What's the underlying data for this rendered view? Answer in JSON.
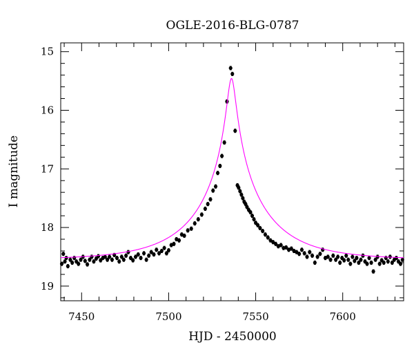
{
  "chart_data": {
    "type": "scatter",
    "title": "OGLE-2016-BLG-0787",
    "xlabel": "HJD - 2450000",
    "ylabel": "I magnitude",
    "xlim": [
      7438,
      7635
    ],
    "ylim": [
      19.25,
      14.85
    ],
    "y_inverted": true,
    "grid": false,
    "x_ticks": [
      {
        "value": 7450,
        "label": "7450"
      },
      {
        "value": 7500,
        "label": "7500"
      },
      {
        "value": 7550,
        "label": "7550"
      },
      {
        "value": 7600,
        "label": "7600"
      }
    ],
    "y_ticks": [
      {
        "value": 15,
        "label": "15"
      },
      {
        "value": 16,
        "label": "16"
      },
      {
        "value": 17,
        "label": "17"
      },
      {
        "value": 18,
        "label": "18"
      },
      {
        "value": 19,
        "label": "19"
      }
    ],
    "colors": {
      "data": "#000000",
      "model": "#ff00ff"
    },
    "series": [
      {
        "type": "scatter",
        "error_bars": true,
        "points": [
          [
            7438.6,
            18.62,
            0.03
          ],
          [
            7439.5,
            18.45,
            0.03
          ],
          [
            7440.4,
            18.58,
            0.03
          ],
          [
            7441.2,
            18.52,
            0.03
          ],
          [
            7442.1,
            18.66,
            0.03
          ],
          [
            7443.5,
            18.55,
            0.03
          ],
          [
            7444.6,
            18.6,
            0.03
          ],
          [
            7445.8,
            18.52,
            0.03
          ],
          [
            7447,
            18.58,
            0.03
          ],
          [
            7448.2,
            18.62,
            0.03
          ],
          [
            7449.5,
            18.55,
            0.03
          ],
          [
            7450.8,
            18.5,
            0.03
          ],
          [
            7452,
            18.57,
            0.03
          ],
          [
            7453.3,
            18.63,
            0.03
          ],
          [
            7454.6,
            18.55,
            0.03
          ],
          [
            7455.8,
            18.5,
            0.03
          ],
          [
            7457,
            18.58,
            0.03
          ],
          [
            7458.4,
            18.53,
            0.03
          ],
          [
            7459.6,
            18.49,
            0.03
          ],
          [
            7460.9,
            18.56,
            0.03
          ],
          [
            7462.2,
            18.52,
            0.03
          ],
          [
            7463.5,
            18.5,
            0.03
          ],
          [
            7464.8,
            18.55,
            0.03
          ],
          [
            7466,
            18.5,
            0.03
          ],
          [
            7467.5,
            18.55,
            0.03
          ],
          [
            7468.8,
            18.47,
            0.03
          ],
          [
            7470.3,
            18.52,
            0.03
          ],
          [
            7471.6,
            18.58,
            0.03
          ],
          [
            7473,
            18.5,
            0.03
          ],
          [
            7474.2,
            18.55,
            0.03
          ],
          [
            7475.5,
            18.48,
            0.03
          ],
          [
            7476.8,
            18.42,
            0.03
          ],
          [
            7478.2,
            18.52,
            0.03
          ],
          [
            7479.5,
            18.56,
            0.03
          ],
          [
            7481,
            18.5,
            0.03
          ],
          [
            7482.5,
            18.46,
            0.03
          ],
          [
            7484,
            18.52,
            0.03
          ],
          [
            7485.8,
            18.44,
            0.03
          ],
          [
            7487.2,
            18.55,
            0.03
          ],
          [
            7488.6,
            18.48,
            0.03
          ],
          [
            7490,
            18.42,
            0.03
          ],
          [
            7491.5,
            18.46,
            0.03
          ],
          [
            7493,
            18.38,
            0.03
          ],
          [
            7494.5,
            18.44,
            0.03
          ],
          [
            7496,
            18.4,
            0.03
          ],
          [
            7497.5,
            18.35,
            0.03
          ],
          [
            7498.8,
            18.44,
            0.03
          ],
          [
            7500,
            18.39,
            0.03
          ],
          [
            7501.5,
            18.3,
            0.03
          ],
          [
            7503,
            18.28,
            0.03
          ],
          [
            7504.5,
            18.2,
            0.03
          ],
          [
            7506,
            18.22,
            0.03
          ],
          [
            7507.5,
            18.12,
            0.03
          ],
          [
            7509,
            18.14,
            0.03
          ],
          [
            7511,
            18.05,
            0.03
          ],
          [
            7513,
            18.02,
            0.03
          ],
          [
            7515,
            17.93,
            0.03
          ],
          [
            7517,
            17.86,
            0.03
          ],
          [
            7519,
            17.78,
            0.03
          ],
          [
            7521,
            17.68,
            0.03
          ],
          [
            7522.5,
            17.6,
            0.03
          ],
          [
            7524,
            17.52,
            0.03
          ],
          [
            7525.5,
            17.37,
            0.03
          ],
          [
            7527,
            17.3,
            0.03
          ],
          [
            7528.2,
            17.07,
            0.03
          ],
          [
            7529.5,
            16.95,
            0.03
          ],
          [
            7530.6,
            16.78,
            0.03
          ],
          [
            7532,
            16.55,
            0.03
          ],
          [
            7533.5,
            15.85,
            0.03
          ],
          [
            7535.6,
            15.28,
            0.03
          ],
          [
            7536.6,
            15.38,
            0.03
          ],
          [
            7538.2,
            16.35,
            0.03
          ],
          [
            7539.5,
            17.28,
            0.03
          ],
          [
            7540.2,
            17.32,
            0.03
          ],
          [
            7541,
            17.38,
            0.03
          ],
          [
            7541.8,
            17.44,
            0.03
          ],
          [
            7542.6,
            17.5,
            0.03
          ],
          [
            7543.4,
            17.56,
            0.03
          ],
          [
            7544.2,
            17.6,
            0.03
          ],
          [
            7545,
            17.65,
            0.03
          ],
          [
            7546,
            17.7,
            0.03
          ],
          [
            7547,
            17.74,
            0.03
          ],
          [
            7548,
            17.8,
            0.03
          ],
          [
            7549,
            17.86,
            0.03
          ],
          [
            7550,
            17.92,
            0.03
          ],
          [
            7551.2,
            17.96,
            0.03
          ],
          [
            7552.5,
            18.01,
            0.03
          ],
          [
            7554,
            18.06,
            0.03
          ],
          [
            7555.5,
            18.12,
            0.03
          ],
          [
            7557,
            18.17,
            0.03
          ],
          [
            7558.5,
            18.22,
            0.03
          ],
          [
            7560,
            18.25,
            0.03
          ],
          [
            7561.5,
            18.28,
            0.03
          ],
          [
            7563,
            18.32,
            0.03
          ],
          [
            7564.5,
            18.3,
            0.03
          ],
          [
            7566,
            18.35,
            0.03
          ],
          [
            7567.5,
            18.34,
            0.03
          ],
          [
            7569,
            18.38,
            0.03
          ],
          [
            7570.5,
            18.36,
            0.03
          ],
          [
            7572,
            18.4,
            0.03
          ],
          [
            7573.5,
            18.42,
            0.03
          ],
          [
            7575,
            18.45,
            0.03
          ],
          [
            7576.5,
            18.38,
            0.03
          ],
          [
            7578,
            18.44,
            0.03
          ],
          [
            7579.5,
            18.5,
            0.03
          ],
          [
            7581,
            18.42,
            0.03
          ],
          [
            7582.5,
            18.48,
            0.03
          ],
          [
            7584,
            18.6,
            0.03
          ],
          [
            7585.5,
            18.5,
            0.03
          ],
          [
            7587,
            18.45,
            0.03
          ],
          [
            7588.5,
            18.38,
            0.03
          ],
          [
            7590,
            18.52,
            0.03
          ],
          [
            7591.5,
            18.5,
            0.03
          ],
          [
            7593,
            18.55,
            0.03
          ],
          [
            7594.5,
            18.48,
            0.03
          ],
          [
            7596,
            18.55,
            0.03
          ],
          [
            7597.2,
            18.5,
            0.03
          ],
          [
            7598.4,
            18.6,
            0.03
          ],
          [
            7599.6,
            18.52,
            0.03
          ],
          [
            7600.8,
            18.56,
            0.03
          ],
          [
            7602,
            18.48,
            0.03
          ],
          [
            7603.2,
            18.55,
            0.03
          ],
          [
            7604.4,
            18.62,
            0.03
          ],
          [
            7605.6,
            18.5,
            0.03
          ],
          [
            7606.8,
            18.57,
            0.03
          ],
          [
            7608,
            18.52,
            0.03
          ],
          [
            7609.2,
            18.6,
            0.03
          ],
          [
            7610.4,
            18.55,
            0.03
          ],
          [
            7611.6,
            18.48,
            0.03
          ],
          [
            7612.8,
            18.58,
            0.03
          ],
          [
            7614,
            18.62,
            0.03
          ],
          [
            7615.2,
            18.52,
            0.03
          ],
          [
            7616.4,
            18.6,
            0.03
          ],
          [
            7617.6,
            18.75,
            0.03
          ],
          [
            7618.8,
            18.55,
            0.03
          ],
          [
            7620,
            18.5,
            0.03
          ],
          [
            7621.2,
            18.62,
            0.03
          ],
          [
            7622.4,
            18.56,
            0.03
          ],
          [
            7623.6,
            18.6,
            0.03
          ],
          [
            7624.8,
            18.52,
            0.03
          ],
          [
            7626,
            18.58,
            0.03
          ],
          [
            7627.2,
            18.5,
            0.03
          ],
          [
            7628.4,
            18.6,
            0.03
          ],
          [
            7629.6,
            18.55,
            0.03
          ],
          [
            7630.8,
            18.52,
            0.03
          ],
          [
            7632,
            18.58,
            0.03
          ],
          [
            7633.2,
            18.62,
            0.03
          ],
          [
            7634.3,
            18.55,
            0.03
          ]
        ]
      },
      {
        "type": "line",
        "model": "point-lens",
        "t0": 7536.1,
        "tE": 40,
        "u0": 0.058,
        "baseline": 18.55
      }
    ]
  }
}
